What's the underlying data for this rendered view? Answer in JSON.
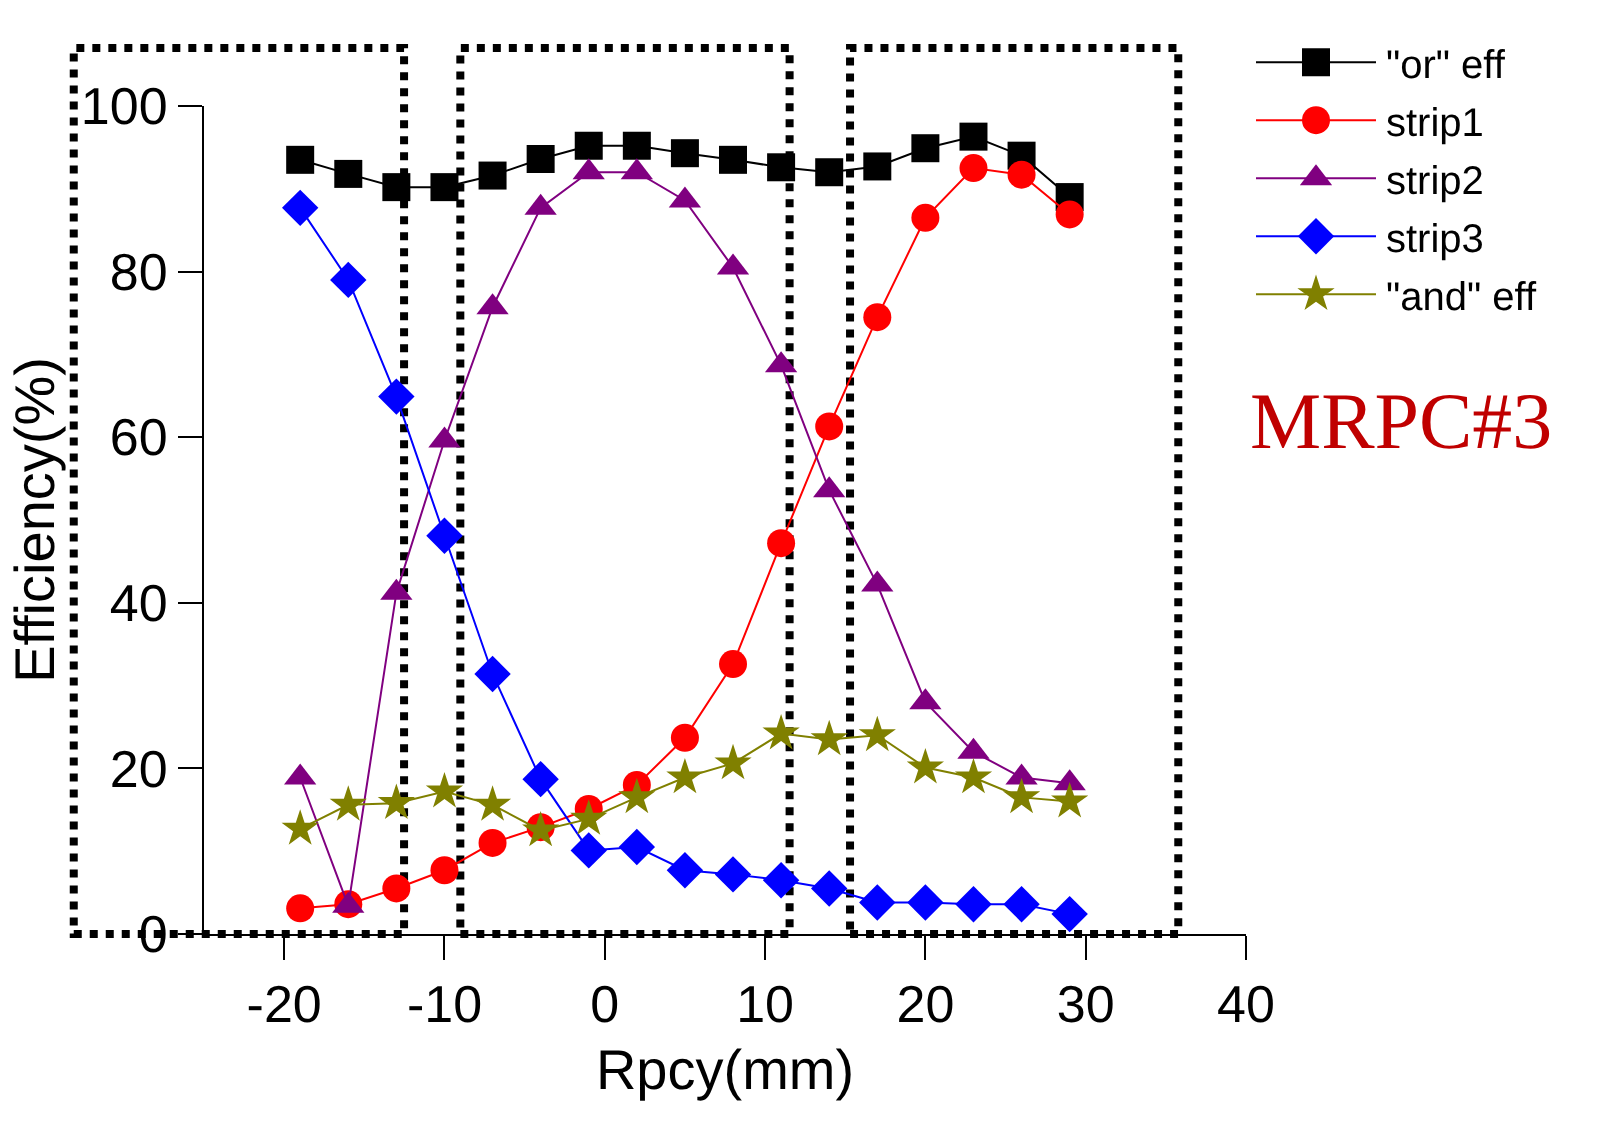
{
  "chart_data": {
    "type": "line",
    "xlabel": "Rpcy(mm)",
    "ylabel": "Efficiency(%)",
    "x": [
      -19,
      -16,
      -13,
      -10,
      -7,
      -4,
      -1,
      2,
      5,
      8,
      11,
      14,
      17,
      20,
      23,
      26,
      29
    ],
    "series": [
      {
        "name": "\"or\" eff",
        "color": "#000000",
        "marker": "square",
        "values": [
          93.5,
          91.8,
          90.2,
          90.2,
          91.6,
          93.6,
          95.2,
          95.2,
          94.3,
          93.5,
          92.6,
          92,
          92.7,
          94.9,
          96.3,
          94,
          89
        ]
      },
      {
        "name": "strip1",
        "color": "#ff0000",
        "marker": "circle",
        "values": [
          3.1,
          3.6,
          5.5,
          7.7,
          11,
          12.9,
          15.1,
          18,
          23.7,
          32.6,
          47.2,
          61.3,
          74.5,
          86.5,
          92.5,
          91.7,
          86.9
        ]
      },
      {
        "name": "strip2",
        "color": "#800080",
        "marker": "triangle",
        "values": [
          18.9,
          3.4,
          41.2,
          59.6,
          75.7,
          87.7,
          92,
          92,
          88.6,
          80.5,
          68.7,
          53.6,
          42.2,
          28,
          22,
          18.9,
          18.2
        ]
      },
      {
        "name": "strip3",
        "color": "#0000ff",
        "marker": "diamond",
        "values": [
          87.7,
          79,
          64.9,
          48.1,
          31.4,
          18.7,
          10.1,
          10.5,
          7.7,
          7.2,
          6.5,
          5.5,
          3.8,
          3.8,
          3.6,
          3.6,
          2.4
        ]
      },
      {
        "name": "\"and\" eff",
        "color": "#808000",
        "marker": "star",
        "values": [
          12.7,
          15.6,
          15.8,
          17.2,
          15.6,
          12.5,
          13.9,
          16.5,
          18.9,
          20.6,
          24.2,
          23.5,
          24,
          20.1,
          18.9,
          16.5,
          16
        ]
      }
    ],
    "xlim": [
      -25,
      40
    ],
    "xticks": [
      -20,
      -10,
      0,
      10,
      20,
      30,
      40
    ],
    "ylim": [
      0,
      100
    ],
    "yticks": [
      0,
      20,
      40,
      60,
      80,
      100
    ],
    "annotations": [
      "MRPC#3"
    ],
    "legend": "top right",
    "grid": false,
    "line_style": "solid"
  }
}
